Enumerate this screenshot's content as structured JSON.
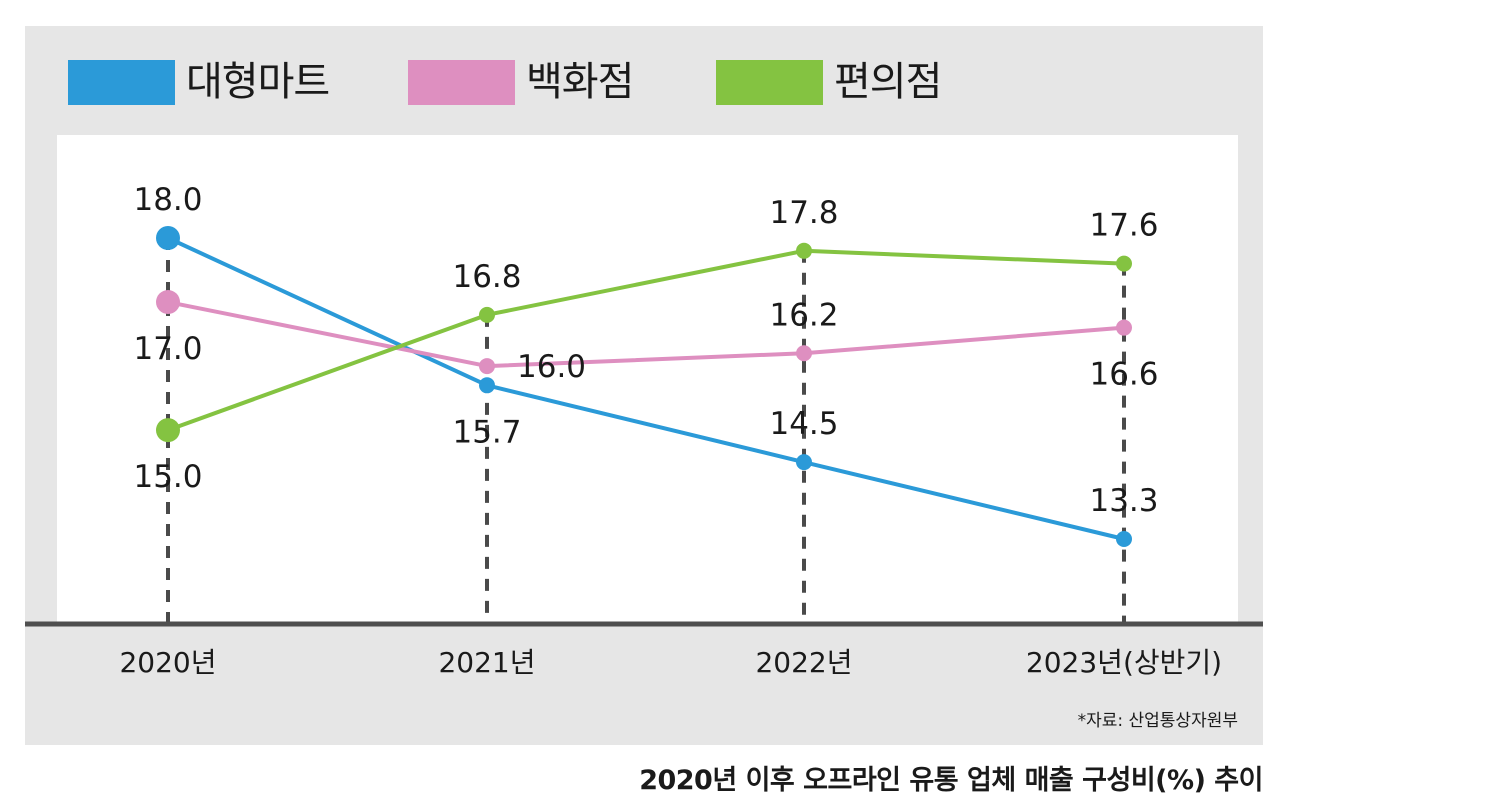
{
  "chart_data": {
    "type": "line",
    "title": "2020년 이후 오프라인 유통 업체 매출 구성비(%) 추이",
    "source": "*자료: 산업통상자원부",
    "categories": [
      "2020년",
      "2021년",
      "2022년",
      "2023년(상반기)"
    ],
    "xlabel": "",
    "ylabel": "",
    "ylim": [
      11.2,
      19.0
    ],
    "grid": false,
    "legend_position": "top",
    "series": [
      {
        "name": "대형마트",
        "color": "#2b9ad8",
        "values": [
          18.0,
          15.7,
          14.5,
          13.3
        ],
        "label_pos": [
          "above",
          "below",
          "above",
          "above"
        ]
      },
      {
        "name": "백화점",
        "color": "#de8fc0",
        "values": [
          17.0,
          16.0,
          16.2,
          16.6
        ],
        "label_pos": [
          "below",
          "right",
          "above",
          "below"
        ]
      },
      {
        "name": "편의점",
        "color": "#84c341",
        "values": [
          15.0,
          16.8,
          17.8,
          17.6
        ],
        "label_pos": [
          "below",
          "above",
          "above",
          "above"
        ]
      }
    ]
  }
}
